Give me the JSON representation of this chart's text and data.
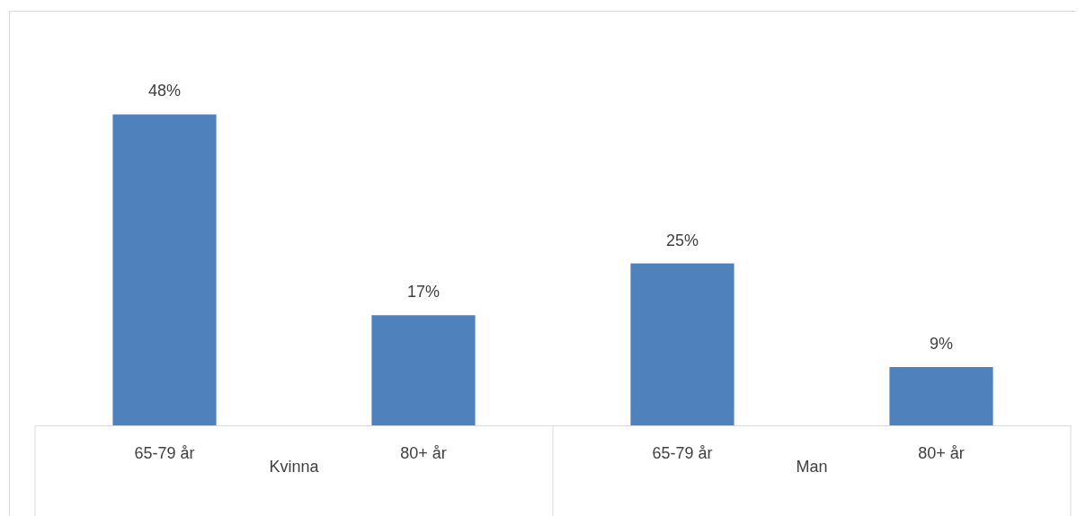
{
  "chart_data": {
    "type": "bar",
    "categories": [
      "65-79 år",
      "80+ år",
      "65-79 år",
      "80+ år"
    ],
    "values": [
      48,
      17,
      25,
      9
    ],
    "color": "#4f81bd",
    "value_labels": [
      "48%",
      "17%",
      "25%",
      "9%"
    ],
    "annotations": [
      "Kvinna",
      "Man"
    ],
    "grid": false
  }
}
